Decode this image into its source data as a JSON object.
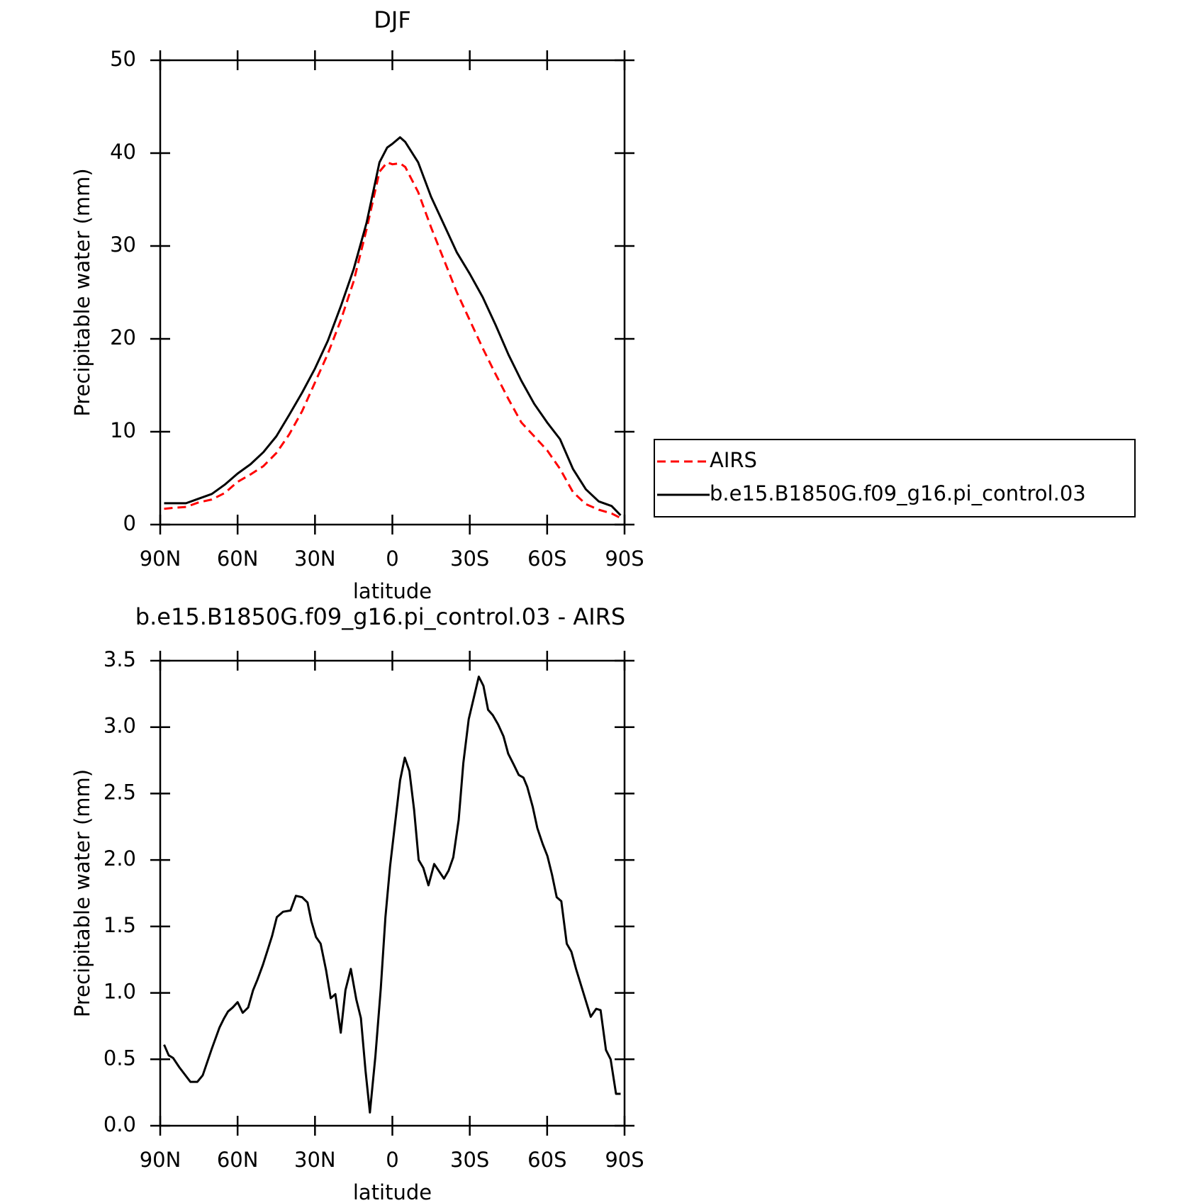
{
  "chart_data": [
    {
      "type": "line",
      "title": "DJF",
      "xlabel": "latitude",
      "ylabel": "Precipitable water (mm)",
      "x": [
        88.5,
        85,
        80,
        75,
        70,
        65,
        60,
        55,
        50,
        45,
        40,
        35,
        30,
        25,
        20,
        15,
        10,
        5,
        2,
        0,
        -3,
        -5,
        -10,
        -15,
        -20,
        -25,
        -30,
        -35,
        -40,
        -45,
        -50,
        -55,
        -60,
        -65,
        -70,
        -75,
        -80,
        -85,
        -88.5
      ],
      "series": [
        {
          "name": "AIRS",
          "color": "#ff0000",
          "dashed": true,
          "values": [
            1.7,
            1.8,
            1.9,
            2.4,
            2.7,
            3.4,
            4.6,
            5.4,
            6.3,
            7.7,
            9.7,
            12.2,
            15.3,
            18.4,
            22.0,
            26.2,
            31.8,
            38.0,
            39.0,
            38.8,
            38.9,
            38.5,
            35.8,
            32.0,
            28.5,
            25.0,
            22.0,
            19.0,
            16.2,
            13.5,
            11.0,
            9.5,
            8.0,
            6.0,
            3.5,
            2.2,
            1.6,
            1.2,
            0.7
          ]
        },
        {
          "name": "b.e15.B1850G.f09_g16.pi_control.03",
          "color": "#000000",
          "dashed": false,
          "values": [
            2.3,
            2.3,
            2.3,
            2.8,
            3.3,
            4.3,
            5.5,
            6.5,
            7.8,
            9.5,
            11.8,
            14.2,
            16.8,
            19.8,
            23.5,
            27.5,
            32.5,
            39.0,
            40.6,
            41.0,
            41.7,
            41.2,
            39.0,
            35.3,
            32.3,
            29.3,
            27.0,
            24.5,
            21.5,
            18.3,
            15.5,
            13.0,
            11.0,
            9.2,
            6.0,
            3.8,
            2.5,
            2.0,
            1.0
          ]
        }
      ],
      "xlim": [
        90,
        -90
      ],
      "xticks": [
        {
          "value": 90,
          "label": "90N"
        },
        {
          "value": 60,
          "label": "60N"
        },
        {
          "value": 30,
          "label": "30N"
        },
        0,
        {
          "value": -30,
          "label": "30S"
        },
        {
          "value": -60,
          "label": "60S"
        },
        {
          "value": -90,
          "label": "90S"
        }
      ],
      "ylim": [
        0,
        50
      ],
      "yticks": [
        0,
        10,
        20,
        30,
        40,
        50
      ],
      "legend": "right"
    },
    {
      "type": "line",
      "title": "b.e15.B1850G.f09_g16.pi_control.03 - AIRS",
      "xlabel": "latitude",
      "ylabel": "Precipitable water (mm)",
      "x": [
        88.5,
        86.7,
        85,
        82.6,
        78.3,
        75.6,
        73.5,
        70,
        67,
        65.2,
        63.7,
        61.9,
        60,
        58,
        55.9,
        54,
        52.3,
        50.2,
        48.4,
        46.6,
        44.8,
        42.4,
        39.5,
        37.4,
        35,
        32.9,
        31.4,
        29.6,
        27.8,
        25.7,
        23.9,
        22.1,
        20,
        18.2,
        16.1,
        14,
        12.2,
        10.4,
        8.7,
        6.6,
        4.5,
        2.7,
        0.9,
        -3,
        -4.8,
        -6.6,
        -8.4,
        -10.2,
        -12,
        -14,
        -16.2,
        -20,
        -21.8,
        -23.6,
        -25.7,
        -27.5,
        -29.6,
        -33.5,
        -35.3,
        -37.1,
        -38.9,
        -41,
        -43.1,
        -44.9,
        -47,
        -49,
        -50.8,
        -52.3,
        -54.4,
        -56.2,
        -58.3,
        -60.1,
        -61.9,
        -63.7,
        -65.5,
        -67.6,
        -69.4,
        -71.2,
        -76.9,
        -79,
        -80.7,
        -82.8,
        -84.6,
        -86.7,
        -88.5
      ],
      "values": [
        0.61,
        0.53,
        0.51,
        0.44,
        0.33,
        0.33,
        0.38,
        0.58,
        0.74,
        0.81,
        0.86,
        0.89,
        0.93,
        0.85,
        0.89,
        1.02,
        1.1,
        1.21,
        1.32,
        1.43,
        1.57,
        1.61,
        1.62,
        1.73,
        1.72,
        1.68,
        1.54,
        1.42,
        1.37,
        1.17,
        0.96,
        0.99,
        0.7,
        1.02,
        1.18,
        0.95,
        0.81,
        0.41,
        0.1,
        0.52,
        1.03,
        1.57,
        1.95,
        2.6,
        2.77,
        2.67,
        2.38,
        2.0,
        1.94,
        1.81,
        1.97,
        1.86,
        1.92,
        2.02,
        2.3,
        2.73,
        3.06,
        3.38,
        3.31,
        3.13,
        3.09,
        3.02,
        2.93,
        2.8,
        2.72,
        2.64,
        2.62,
        2.55,
        2.4,
        2.24,
        2.12,
        2.03,
        1.89,
        1.72,
        1.69,
        1.37,
        1.31,
        1.18,
        0.82,
        0.88,
        0.87,
        0.57,
        0.5,
        0.24,
        0.24
      ],
      "color": "#000000",
      "xlim": [
        90,
        -90
      ],
      "xticks": [
        {
          "value": 90,
          "label": "90N"
        },
        {
          "value": 60,
          "label": "60N"
        },
        {
          "value": 30,
          "label": "30N"
        },
        0,
        {
          "value": -30,
          "label": "30S"
        },
        {
          "value": -60,
          "label": "60S"
        },
        {
          "value": -90,
          "label": "90S"
        }
      ],
      "ylim": [
        0,
        3.5
      ],
      "yticks": [
        {
          "value": 0,
          "label": "0.0"
        },
        0.5,
        {
          "value": 1,
          "label": "1.0"
        },
        1.5,
        {
          "value": 2,
          "label": "2.0"
        },
        2.5,
        {
          "value": 3,
          "label": "3.0"
        },
        3.5
      ]
    }
  ]
}
